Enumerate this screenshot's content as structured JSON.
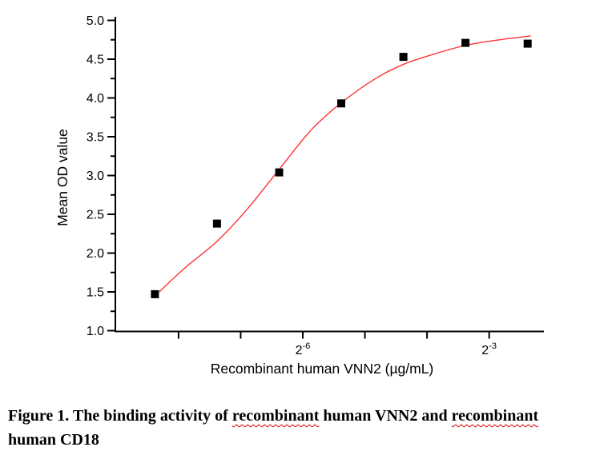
{
  "chart_data": {
    "type": "scatter",
    "title": "",
    "xlabel": "Recombinant human VNN2 (µg/mL)",
    "ylabel": "Mean OD value",
    "x_scale": "log2",
    "grid": false,
    "legend": "none",
    "x": [
      0.003,
      0.006,
      0.012,
      0.024,
      0.048,
      0.096,
      0.192
    ],
    "y": [
      1.47,
      2.38,
      3.04,
      3.93,
      4.53,
      4.71,
      4.7
    ],
    "marker": {
      "shape": "square",
      "color": "#000000",
      "size": 10
    },
    "fit_curve": {
      "color": "#ff3333",
      "points_log2x_od": [
        [
          -8.31,
          1.5
        ],
        [
          -7.91,
          1.8
        ],
        [
          -7.37,
          2.16
        ],
        [
          -6.88,
          2.58
        ],
        [
          -6.36,
          3.1
        ],
        [
          -5.85,
          3.6
        ],
        [
          -5.36,
          3.95
        ],
        [
          -4.81,
          4.26
        ],
        [
          -4.36,
          4.44
        ],
        [
          -3.91,
          4.56
        ],
        [
          -3.37,
          4.68
        ],
        [
          -2.84,
          4.75
        ],
        [
          -2.33,
          4.8
        ]
      ]
    },
    "axes": {
      "xlim_log2": [
        -9.02,
        -2.12
      ],
      "ylim": [
        1.0,
        5.0
      ],
      "x_ticks_log2": [
        -8,
        -7,
        -6,
        -5,
        -4,
        -3
      ],
      "x_tick_labels": [
        {
          "at_log2": -6,
          "base": "2",
          "exponent": "-6"
        },
        {
          "at_log2": -3,
          "base": "2",
          "exponent": "-3"
        }
      ],
      "y_major_ticks": [
        {
          "value": 1.0,
          "label": "1.0"
        },
        {
          "value": 1.5,
          "label": "1.5"
        },
        {
          "value": 2.0,
          "label": "2.0"
        },
        {
          "value": 2.5,
          "label": "2.5"
        },
        {
          "value": 3.0,
          "label": "3.0"
        },
        {
          "value": 3.5,
          "label": "3.5"
        },
        {
          "value": 4.0,
          "label": "4.0"
        },
        {
          "value": 4.5,
          "label": "4.5"
        },
        {
          "value": 5.0,
          "label": "5.0"
        }
      ],
      "y_minor_ticks": [
        1.25,
        1.75,
        2.25,
        2.75,
        3.25,
        3.75,
        4.25,
        4.75
      ]
    },
    "colors": {
      "axis": "#000000",
      "text": "#000000",
      "curve": "#ff3333",
      "marker": "#000000",
      "background": "#ffffff"
    }
  },
  "caption": {
    "line1_parts": [
      {
        "text": "Figure 1. The binding activity of ",
        "spellcheck_squiggle": false
      },
      {
        "text": "recombinant",
        "spellcheck_squiggle": true
      },
      {
        "text": " human VNN2 and ",
        "spellcheck_squiggle": false
      },
      {
        "text": "recombinant",
        "spellcheck_squiggle": true
      }
    ],
    "line2": "human CD18",
    "squiggle_color": "#d40000"
  }
}
